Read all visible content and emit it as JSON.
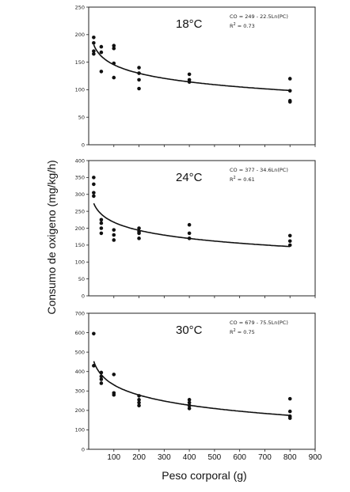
{
  "chart_data": [
    {
      "type": "scatter",
      "title": "18°C",
      "equation": "CO = 249 - 22.5Ln(PC)",
      "r2_label": "R",
      "r2_value": " = 0.73",
      "xlim": [
        0,
        900
      ],
      "ylim": [
        0,
        250
      ],
      "yticks": [
        "0",
        "50",
        "100",
        "150",
        "200",
        "250"
      ],
      "points": [
        [
          20,
          195
        ],
        [
          20,
          185
        ],
        [
          20,
          170
        ],
        [
          20,
          165
        ],
        [
          50,
          178
        ],
        [
          50,
          168
        ],
        [
          50,
          133
        ],
        [
          100,
          180
        ],
        [
          100,
          175
        ],
        [
          100,
          148
        ],
        [
          100,
          122
        ],
        [
          200,
          140
        ],
        [
          200,
          130
        ],
        [
          200,
          118
        ],
        [
          200,
          102
        ],
        [
          400,
          128
        ],
        [
          400,
          118
        ],
        [
          400,
          114
        ],
        [
          800,
          120
        ],
        [
          800,
          98
        ],
        [
          800,
          80
        ],
        [
          800,
          78
        ]
      ],
      "fit": {
        "a": 249,
        "b": 22.5
      }
    },
    {
      "type": "scatter",
      "title": "24°C",
      "equation": "CO = 377 - 34.6Ln(PC)",
      "r2_label": "R",
      "r2_value": " = 0.61",
      "xlim": [
        0,
        900
      ],
      "ylim": [
        0,
        400
      ],
      "yticks": [
        "0",
        "50",
        "100",
        "150",
        "200",
        "250",
        "300",
        "350",
        "400"
      ],
      "points": [
        [
          20,
          350
        ],
        [
          20,
          330
        ],
        [
          20,
          305
        ],
        [
          20,
          295
        ],
        [
          50,
          225
        ],
        [
          50,
          215
        ],
        [
          50,
          200
        ],
        [
          50,
          185
        ],
        [
          100,
          195
        ],
        [
          100,
          180
        ],
        [
          100,
          165
        ],
        [
          200,
          200
        ],
        [
          200,
          190
        ],
        [
          200,
          185
        ],
        [
          200,
          170
        ],
        [
          400,
          210
        ],
        [
          400,
          185
        ],
        [
          400,
          170
        ],
        [
          800,
          178
        ],
        [
          800,
          162
        ],
        [
          800,
          150
        ]
      ],
      "fit": {
        "a": 377,
        "b": 34.6
      }
    },
    {
      "type": "scatter",
      "title": "30°C",
      "equation": "CO = 679 - 75.5Ln(PC)",
      "r2_label": "R",
      "r2_value": " = 0.75",
      "xlim": [
        0,
        900
      ],
      "ylim": [
        0,
        700
      ],
      "yticks": [
        "0",
        "100",
        "200",
        "300",
        "400",
        "500",
        "600",
        "700"
      ],
      "xticks": [
        "100",
        "200",
        "300",
        "400",
        "500",
        "600",
        "700",
        "800",
        "900"
      ],
      "points": [
        [
          20,
          595
        ],
        [
          20,
          430
        ],
        [
          50,
          395
        ],
        [
          50,
          375
        ],
        [
          50,
          360
        ],
        [
          50,
          340
        ],
        [
          100,
          385
        ],
        [
          100,
          290
        ],
        [
          100,
          280
        ],
        [
          200,
          275
        ],
        [
          200,
          255
        ],
        [
          200,
          240
        ],
        [
          200,
          225
        ],
        [
          400,
          255
        ],
        [
          400,
          240
        ],
        [
          400,
          225
        ],
        [
          400,
          210
        ],
        [
          800,
          260
        ],
        [
          800,
          195
        ],
        [
          800,
          170
        ],
        [
          800,
          160
        ]
      ],
      "fit": {
        "a": 679,
        "b": 75.5
      }
    }
  ],
  "ylabel": "Consumo de oxigeno (mg/kg/h)",
  "xlabel": "Peso corporal (g)"
}
